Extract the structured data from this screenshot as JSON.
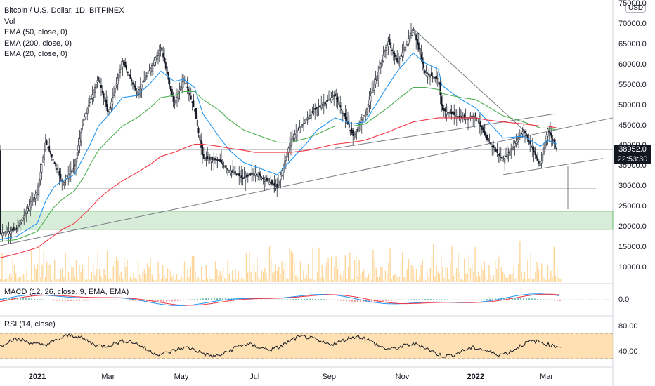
{
  "legend": {
    "title": "Bitcoin / U.S. Dollar, 1D, BITFINEX",
    "items": [
      "Vol",
      "EMA (50, close, 0)",
      "EMA (200, close, 0)",
      "EMA (20, close, 0)"
    ]
  },
  "currency_label": "USD",
  "last_price": {
    "value": "38952.0",
    "countdown": "22:53:30"
  },
  "panes": {
    "macd_title": "MACD (12, 26, close, 9, EMA, EMA)",
    "macd_tick": "0.0",
    "rsi_title": "RSI (14, close)",
    "rsi_ticks": [
      "80.00",
      "40.00"
    ]
  },
  "colors": {
    "ema20": "#2196f3",
    "ema50": "#4caf50",
    "ema200": "#f23645",
    "candle": "#131722",
    "zone": "#c8e6c9",
    "rsi_band": "#ffcc80",
    "volume": "#ffcc80",
    "macd_line": "#2196f3",
    "signal_line": "#f23645"
  },
  "chart_data": {
    "type": "line",
    "title": "Bitcoin / U.S. Dollar, 1D, BITFINEX",
    "y_ticks": [
      "75000.0",
      "70000.0",
      "65000.0",
      "60000.0",
      "55000.0",
      "50000.0",
      "45000.0",
      "40000.0",
      "35000.0",
      "30000.0",
      "25000.0",
      "20000.0",
      "15000.0",
      "10000.0"
    ],
    "x_ticks": [
      {
        "label": "2021",
        "bold": true
      },
      {
        "label": "Mar",
        "bold": false
      },
      {
        "label": "May",
        "bold": false
      },
      {
        "label": "Jul",
        "bold": false
      },
      {
        "label": "Sep",
        "bold": false
      },
      {
        "label": "Nov",
        "bold": false
      },
      {
        "label": "2022",
        "bold": true
      },
      {
        "label": "Mar",
        "bold": false
      }
    ],
    "ylim": [
      7000,
      76000
    ],
    "x": [
      "2020-12-01",
      "2020-12-15",
      "2021-01-01",
      "2021-01-08",
      "2021-01-15",
      "2021-01-22",
      "2021-02-01",
      "2021-02-08",
      "2021-02-15",
      "2021-02-21",
      "2021-03-01",
      "2021-03-13",
      "2021-03-25",
      "2021-04-05",
      "2021-04-14",
      "2021-04-25",
      "2021-05-03",
      "2021-05-12",
      "2021-05-19",
      "2021-06-01",
      "2021-06-10",
      "2021-06-22",
      "2021-07-01",
      "2021-07-20",
      "2021-07-31",
      "2021-08-14",
      "2021-08-22",
      "2021-09-06",
      "2021-09-21",
      "2021-10-01",
      "2021-10-20",
      "2021-10-28",
      "2021-11-10",
      "2021-11-20",
      "2021-12-01",
      "2021-12-04",
      "2021-12-20",
      "2022-01-01",
      "2022-01-10",
      "2022-01-24",
      "2022-02-10",
      "2022-02-24",
      "2022-03-02",
      "2022-03-10"
    ],
    "series": [
      {
        "values": [
          18500,
          19500,
          29000,
          41000,
          36000,
          31000,
          35000,
          46000,
          52000,
          57000,
          48000,
          61000,
          53000,
          59000,
          64500,
          50000,
          57000,
          49000,
          37000,
          36500,
          34000,
          32000,
          33500,
          29800,
          41500,
          47000,
          49500,
          52500,
          42500,
          48000,
          66000,
          60500,
          69000,
          58000,
          56500,
          49000,
          47000,
          47500,
          41800,
          36500,
          44000,
          35000,
          44300,
          38952
        ]
      },
      {
        "values": [
          17000,
          17800,
          21000,
          26500,
          30000,
          31500,
          33000,
          37000,
          41000,
          45000,
          47500,
          52000,
          52500,
          55500,
          58500,
          56000,
          56500,
          54500,
          48000,
          42500,
          39000,
          36000,
          35000,
          33000,
          36500,
          41000,
          44000,
          47000,
          45500,
          46000,
          55000,
          58500,
          63000,
          60500,
          59000,
          55000,
          51500,
          49500,
          46500,
          42000,
          42500,
          40000,
          41500,
          40500
        ]
      },
      {
        "values": [
          16500,
          17000,
          19000,
          22000,
          25000,
          27000,
          29000,
          32000,
          36000,
          39000,
          41500,
          45000,
          47000,
          49500,
          52000,
          52500,
          53500,
          53500,
          51500,
          49000,
          46500,
          44000,
          43000,
          41000,
          41000,
          42000,
          43000,
          45000,
          45000,
          45500,
          49500,
          51500,
          54500,
          54500,
          54000,
          53000,
          52000,
          51500,
          50000,
          47500,
          46000,
          44500,
          44500,
          44000
        ]
      },
      {
        "values": [
          12500,
          13500,
          15000,
          16500,
          18000,
          19500,
          21000,
          23000,
          25000,
          27000,
          29000,
          31500,
          33500,
          35500,
          37500,
          38500,
          39500,
          40500,
          40500,
          40000,
          39500,
          39000,
          38500,
          38500,
          38500,
          39000,
          39500,
          40500,
          41000,
          41500,
          43500,
          44500,
          46000,
          46500,
          47000,
          47000,
          47000,
          47000,
          46500,
          46000,
          45500,
          45000,
          45000,
          44500
        ]
      }
    ]
  }
}
